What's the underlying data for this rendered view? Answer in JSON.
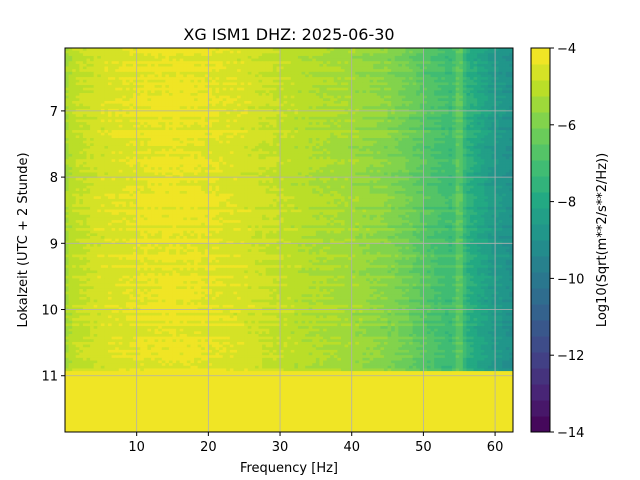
{
  "chart_data": {
    "type": "heatmap",
    "title": "XG ISM1  DHZ: 2025-06-30",
    "xlabel": "Frequency [Hz]",
    "ylabel": "Lokalzeit (UTC + 2 Stunde)",
    "xlim": [
      0,
      62.5
    ],
    "ylim": [
      11.85,
      6.05
    ],
    "y_inverted": true,
    "grid": true,
    "x_ticks": [
      10,
      20,
      30,
      40,
      50,
      60
    ],
    "y_ticks": [
      7,
      8,
      9,
      10,
      11
    ],
    "colormap": "viridis",
    "colorbar": {
      "label": "Log10(Sqrt(m**2/s**2/Hz))",
      "range": [
        -14,
        -4
      ],
      "ticks": [
        -4,
        -6,
        -8,
        -10,
        -12,
        -14
      ],
      "levels": 24
    },
    "data_end_time": 10.93,
    "fill_value_after_end": -4.0,
    "profile": {
      "description_points_hz": [
        0,
        1,
        5,
        10,
        15,
        20,
        25,
        30,
        35,
        40,
        45,
        48,
        50,
        52,
        54,
        55,
        56,
        58,
        60,
        62.5
      ],
      "log10_asd": [
        -5.4,
        -5.0,
        -4.6,
        -4.4,
        -4.3,
        -4.4,
        -4.6,
        -4.9,
        -5.2,
        -5.4,
        -5.8,
        -6.2,
        -6.6,
        -6.9,
        -7.2,
        -6.3,
        -7.6,
        -8.1,
        -8.6,
        -9.0
      ]
    },
    "spectral_lines_hz": [
      50.0,
      54.0
    ]
  },
  "colors": {
    "viridis_stops": [
      "#440154",
      "#482475",
      "#414487",
      "#355f8d",
      "#2a788e",
      "#21918c",
      "#22a884",
      "#44bf70",
      "#7ad151",
      "#bddf26",
      "#fde725"
    ],
    "grid": "#b0b0b0",
    "axes": "#000000"
  }
}
